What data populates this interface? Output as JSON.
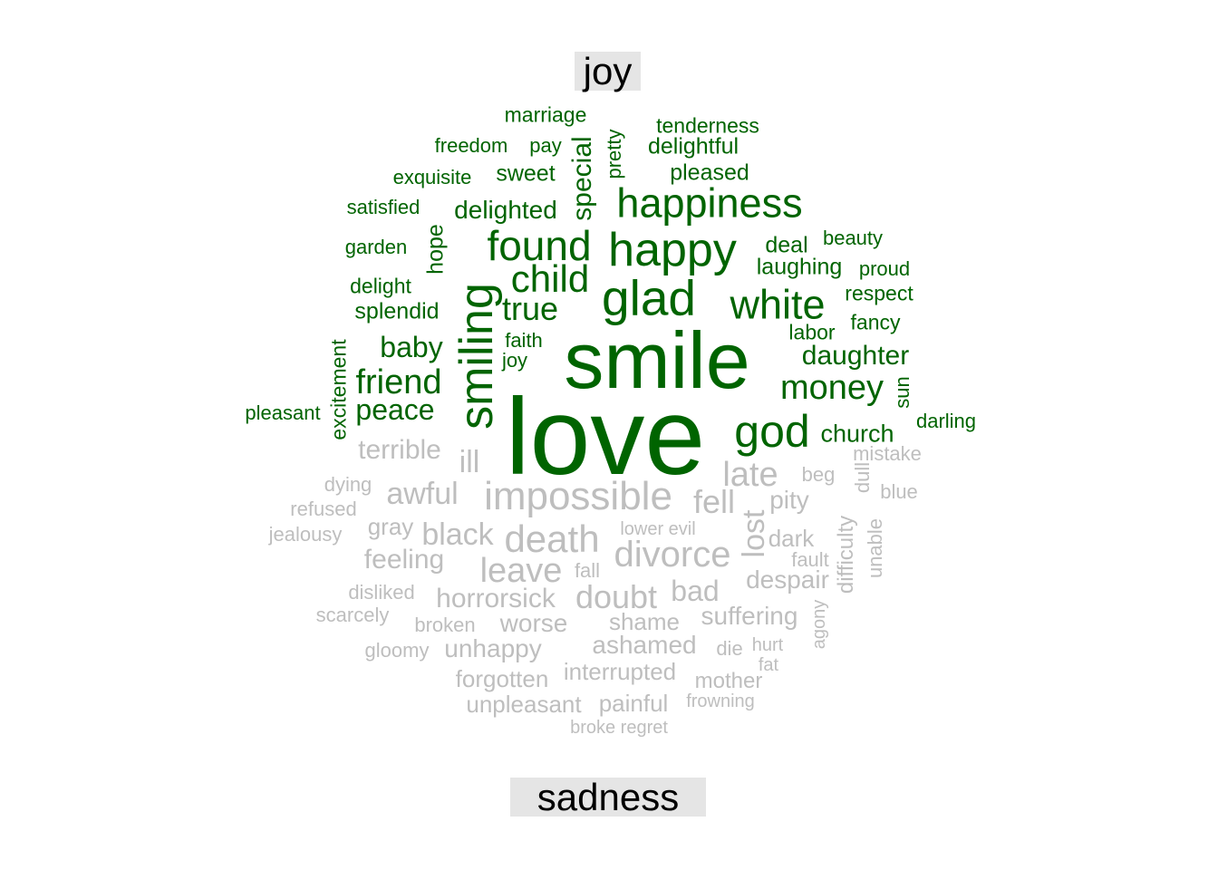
{
  "groups": {
    "joy": {
      "label": "joy",
      "color": "#006400",
      "words": [
        {
          "text": "love",
          "size": 120
        },
        {
          "text": "smile",
          "size": 88
        },
        {
          "text": "smiling",
          "size": 52,
          "rotated": true
        },
        {
          "text": "glad",
          "size": 55
        },
        {
          "text": "happy",
          "size": 52
        },
        {
          "text": "found",
          "size": 46
        },
        {
          "text": "god",
          "size": 50
        },
        {
          "text": "happiness",
          "size": 45
        },
        {
          "text": "white",
          "size": 45
        },
        {
          "text": "child",
          "size": 42
        },
        {
          "text": "friend",
          "size": 38
        },
        {
          "text": "money",
          "size": 38
        },
        {
          "text": "true",
          "size": 36
        },
        {
          "text": "baby",
          "size": 32
        },
        {
          "text": "daughter",
          "size": 30
        },
        {
          "text": "peace",
          "size": 32
        },
        {
          "text": "special",
          "size": 30,
          "rotated": true
        },
        {
          "text": "delighted",
          "size": 28
        },
        {
          "text": "church",
          "size": 27
        },
        {
          "text": "sweet",
          "size": 25
        },
        {
          "text": "pleased",
          "size": 25
        },
        {
          "text": "delightful",
          "size": 25
        },
        {
          "text": "deal",
          "size": 25
        },
        {
          "text": "laughing",
          "size": 25
        },
        {
          "text": "hope",
          "size": 25,
          "rotated": true
        },
        {
          "text": "splendid",
          "size": 25
        },
        {
          "text": "excitement",
          "size": 23,
          "rotated": true
        },
        {
          "text": "marriage",
          "size": 23
        },
        {
          "text": "tenderness",
          "size": 23
        },
        {
          "text": "delight",
          "size": 23
        },
        {
          "text": "respect",
          "size": 23
        },
        {
          "text": "labor",
          "size": 23
        },
        {
          "text": "fancy",
          "size": 23
        },
        {
          "text": "faith",
          "size": 22
        },
        {
          "text": "pretty",
          "size": 22,
          "rotated": true
        },
        {
          "text": "freedom",
          "size": 22
        },
        {
          "text": "pay",
          "size": 22
        },
        {
          "text": "exquisite",
          "size": 22
        },
        {
          "text": "satisfied",
          "size": 22
        },
        {
          "text": "garden",
          "size": 22
        },
        {
          "text": "beauty",
          "size": 22
        },
        {
          "text": "proud",
          "size": 22
        },
        {
          "text": "joy",
          "size": 22
        },
        {
          "text": "darling",
          "size": 22
        },
        {
          "text": "pleasant",
          "size": 22
        },
        {
          "text": "sun",
          "size": 22,
          "rotated": true
        }
      ]
    },
    "sadness": {
      "label": "sadness",
      "color": "#bebebe",
      "words": [
        {
          "text": "impossible",
          "size": 44
        },
        {
          "text": "death",
          "size": 42
        },
        {
          "text": "divorce",
          "size": 40
        },
        {
          "text": "leave",
          "size": 38
        },
        {
          "text": "doubt",
          "size": 36
        },
        {
          "text": "late",
          "size": 38
        },
        {
          "text": "fell",
          "size": 36
        },
        {
          "text": "black",
          "size": 34
        },
        {
          "text": "awful",
          "size": 34
        },
        {
          "text": "ill",
          "size": 34
        },
        {
          "text": "lost",
          "size": 34,
          "rotated": true
        },
        {
          "text": "bad",
          "size": 32
        },
        {
          "text": "pity",
          "size": 28
        },
        {
          "text": "feeling",
          "size": 30
        },
        {
          "text": "horrorsick",
          "size": 30
        },
        {
          "text": "terrible",
          "size": 30
        },
        {
          "text": "despair",
          "size": 28
        },
        {
          "text": "suffering",
          "size": 28
        },
        {
          "text": "dark",
          "size": 26
        },
        {
          "text": "worse",
          "size": 28
        },
        {
          "text": "ashamed",
          "size": 28
        },
        {
          "text": "unhappy",
          "size": 28
        },
        {
          "text": "shame",
          "size": 26
        },
        {
          "text": "gray",
          "size": 26
        },
        {
          "text": "interrupted",
          "size": 26
        },
        {
          "text": "forgotten",
          "size": 26
        },
        {
          "text": "unpleasant",
          "size": 26
        },
        {
          "text": "painful",
          "size": 26
        },
        {
          "text": "difficulty",
          "size": 24,
          "rotated": true
        },
        {
          "text": "mother",
          "size": 24
        },
        {
          "text": "unable",
          "size": 22,
          "rotated": true
        },
        {
          "text": "broken",
          "size": 22
        },
        {
          "text": "beg",
          "size": 22
        },
        {
          "text": "fault",
          "size": 22
        },
        {
          "text": "fall",
          "size": 22
        },
        {
          "text": "die",
          "size": 22
        },
        {
          "text": "frowning",
          "size": 20
        },
        {
          "text": "blue",
          "size": 22
        },
        {
          "text": "mistake",
          "size": 22
        },
        {
          "text": "dull",
          "size": 22,
          "rotated": true
        },
        {
          "text": "dying",
          "size": 22
        },
        {
          "text": "refused",
          "size": 22
        },
        {
          "text": "jealousy",
          "size": 22
        },
        {
          "text": "disliked",
          "size": 22
        },
        {
          "text": "scarcely",
          "size": 22
        },
        {
          "text": "gloomy",
          "size": 22
        },
        {
          "text": "lower evil",
          "size": 20
        },
        {
          "text": "agony",
          "size": 20,
          "rotated": true
        },
        {
          "text": "hurt",
          "size": 20
        },
        {
          "text": "fat",
          "size": 20
        },
        {
          "text": "broke regret",
          "size": 20
        }
      ]
    }
  }
}
